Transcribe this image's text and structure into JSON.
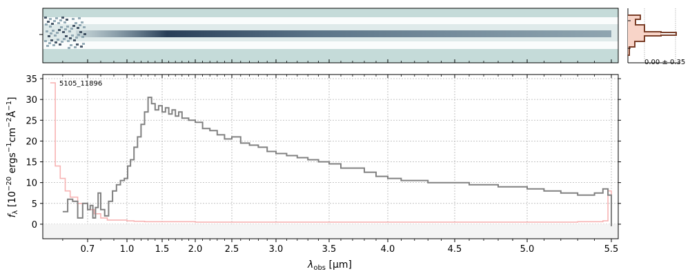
{
  "chart_data": {
    "type": "line",
    "object_label": "5105_11896",
    "xlabel_main": "λ",
    "xlabel_sub": "obs",
    "xlabel_unit": " [μm]",
    "ylabel": "f_λ [10^-20 ergs^-1 cm^-2 Å^-1]",
    "x_scale": "nonlinear (wavelength, resolution-style axis)",
    "xlim": [
      0.52,
      5.52
    ],
    "ylim": [
      -3.5,
      36
    ],
    "grid": true,
    "x_ticks": [
      0.7,
      1.0,
      1.5,
      2.0,
      2.5,
      3.0,
      3.5,
      4.0,
      4.5,
      5.0,
      5.5
    ],
    "x_tick_labels": [
      "0.7",
      "1.0",
      "1.5",
      "2.0",
      "2.5",
      "3.0",
      "3.5",
      "4.0",
      "4.5",
      "5.0",
      "5.5"
    ],
    "y_ticks": [
      0,
      5,
      10,
      15,
      20,
      25,
      30,
      35
    ],
    "y_tick_labels": [
      "0",
      "5",
      "10",
      "15",
      "20",
      "25",
      "30",
      "35"
    ],
    "series": [
      {
        "color": "#808080",
        "style": "steps",
        "x": [
          0.6,
          0.62,
          0.64,
          0.66,
          0.68,
          0.7,
          0.72,
          0.74,
          0.76,
          0.78,
          0.8,
          0.83,
          0.86,
          0.89,
          0.92,
          0.95,
          0.98,
          1.01,
          1.05,
          1.1,
          1.15,
          1.2,
          1.25,
          1.3,
          1.35,
          1.4,
          1.45,
          1.5,
          1.55,
          1.6,
          1.65,
          1.7,
          1.75,
          1.8,
          1.9,
          2.0,
          2.1,
          2.2,
          2.3,
          2.4,
          2.5,
          2.6,
          2.7,
          2.8,
          2.9,
          3.0,
          3.1,
          3.2,
          3.3,
          3.4,
          3.5,
          3.6,
          3.7,
          3.8,
          3.9,
          4.0,
          4.1,
          4.2,
          4.3,
          4.4,
          4.5,
          4.6,
          4.7,
          4.8,
          4.9,
          5.0,
          5.1,
          5.2,
          5.3,
          5.4,
          5.45,
          5.48,
          5.5
        ],
        "y": [
          3.0,
          6.0,
          5.5,
          1.5,
          5.0,
          3.5,
          4.5,
          1.5,
          4.0,
          7.5,
          3.5,
          2.0,
          5.5,
          8.0,
          9.5,
          10.5,
          11.0,
          14.0,
          15.5,
          18.5,
          21.0,
          24.0,
          27.0,
          30.5,
          29.0,
          27.5,
          28.5,
          27.0,
          28.0,
          26.5,
          27.5,
          26.0,
          27.0,
          25.5,
          25.0,
          24.5,
          23.0,
          22.5,
          21.5,
          20.5,
          21.0,
          19.5,
          19.0,
          18.5,
          17.5,
          17.0,
          16.5,
          16.0,
          15.5,
          15.0,
          14.5,
          13.5,
          13.5,
          12.5,
          11.5,
          11.0,
          10.5,
          10.5,
          10.0,
          10.0,
          10.0,
          9.5,
          9.5,
          9.0,
          9.0,
          8.5,
          8.0,
          7.5,
          7.0,
          7.5,
          8.5,
          7.0,
          -0.5
        ]
      },
      {
        "color": "#f7b3b3",
        "style": "steps",
        "x": [
          0.55,
          0.57,
          0.59,
          0.61,
          0.63,
          0.66,
          0.7,
          0.75,
          0.8,
          0.85,
          0.9,
          0.95,
          1.0,
          1.1,
          1.25,
          1.5,
          2.0,
          2.5,
          3.0,
          3.5,
          4.0,
          4.5,
          5.0,
          5.3,
          5.45,
          5.48,
          5.5
        ],
        "y": [
          34.0,
          14.0,
          11.0,
          8.0,
          6.5,
          5.0,
          3.5,
          2.5,
          1.5,
          1.0,
          1.0,
          1.0,
          0.8,
          0.7,
          0.6,
          0.6,
          0.5,
          0.5,
          0.5,
          0.5,
          0.5,
          0.5,
          0.5,
          0.6,
          0.8,
          8.0,
          1.0
        ]
      }
    ],
    "profile_panel": {
      "annotation": "0.00 ± 0.35"
    }
  }
}
